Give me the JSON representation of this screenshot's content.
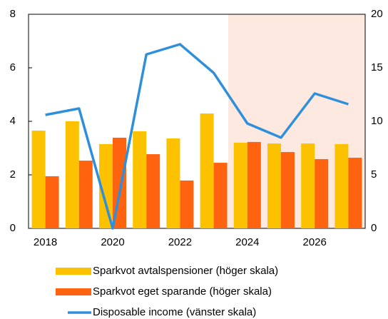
{
  "chart_data": {
    "type": "bar",
    "categories": [
      "2018",
      null,
      "2020",
      null,
      "2022",
      null,
      "2024",
      null,
      "2026",
      null
    ],
    "series": [
      {
        "name": "Sparkvot avtalspensioner (höger skala)",
        "type": "bar",
        "axis": "y2",
        "color": "#fcc200",
        "values": [
          9.13,
          10.0,
          7.87,
          9.07,
          8.4,
          10.73,
          8.0,
          7.93,
          7.93,
          7.87
        ]
      },
      {
        "name": "Sparkvot eget sparande (höger skala)",
        "type": "bar",
        "axis": "y2",
        "color": "#ff6310",
        "values": [
          4.87,
          6.33,
          8.47,
          6.93,
          4.47,
          6.13,
          8.07,
          7.13,
          6.47,
          6.6
        ]
      },
      {
        "name": "Disposable income (vänster skala)",
        "type": "line",
        "axis": "y",
        "color": "#2f8fdb",
        "values": [
          4.24,
          4.48,
          0.0,
          6.5,
          6.88,
          5.81,
          3.92,
          3.39,
          5.04,
          4.64
        ]
      }
    ],
    "ylim": [
      0,
      8
    ],
    "yticks": [
      0,
      2,
      4,
      6,
      8
    ],
    "y2lim": [
      0,
      20
    ],
    "y2ticks": [
      0,
      5,
      10,
      15,
      20
    ],
    "grid": false
  }
}
